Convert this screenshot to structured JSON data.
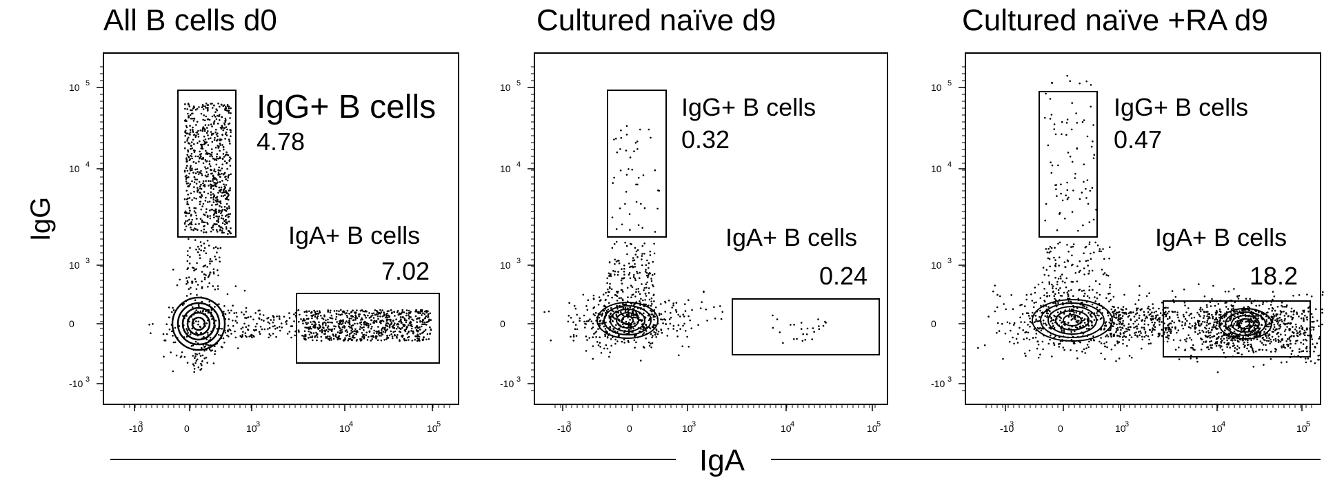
{
  "axis_title_x": "IgA",
  "axis_title_y": "IgG",
  "chart_data": [
    {
      "type": "scatter",
      "subtype": "flow-cytometry contour plot with outliers",
      "title": "All B cells d0",
      "xlabel": "IgA",
      "ylabel": "IgG",
      "xscale": "biexponential",
      "yscale": "biexponential",
      "x_ticks": [
        "-10^3",
        "0",
        "10^3",
        "10^4",
        "10^5"
      ],
      "y_ticks": [
        "10^5",
        "10^4",
        "10^3",
        "0",
        "-10^3"
      ],
      "gates": [
        {
          "name": "IgG+ B cells",
          "value": 4.78,
          "display": "4.78"
        },
        {
          "name": "IgA+ B cells",
          "value": 7.02,
          "display": "7.02"
        }
      ],
      "populations": [
        {
          "name": "double-negative",
          "x": 0,
          "y": 0,
          "contour": "strong"
        },
        {
          "name": "IgG+",
          "x_range": [
            0,
            800
          ],
          "y_range": [
            2000,
            80000
          ]
        },
        {
          "name": "IgA+",
          "x_range": [
            3000,
            100000
          ],
          "y_range": [
            -300,
            300
          ]
        }
      ]
    },
    {
      "type": "scatter",
      "subtype": "flow-cytometry contour plot with outliers",
      "title": "Cultured naïve d9",
      "xlabel": "IgA",
      "ylabel": "IgG",
      "xscale": "biexponential",
      "yscale": "biexponential",
      "x_ticks": [
        "-10^3",
        "0",
        "10^3",
        "10^4",
        "10^5"
      ],
      "y_ticks": [
        "10^5",
        "10^4",
        "10^3",
        "0",
        "-10^3"
      ],
      "gates": [
        {
          "name": "IgG+ B cells",
          "value": 0.32,
          "display": "0.32"
        },
        {
          "name": "IgA+ B cells",
          "value": 0.24,
          "display": "0.24"
        }
      ],
      "populations": [
        {
          "name": "double-negative",
          "x": 0,
          "y": 0,
          "contour": "dense"
        },
        {
          "name": "IgG+",
          "x_range": [
            0,
            800
          ],
          "y_range": [
            2000,
            30000
          ]
        },
        {
          "name": "IgA+",
          "x_range": [
            5000,
            50000
          ],
          "y_range": [
            -300,
            300
          ]
        }
      ]
    },
    {
      "type": "scatter",
      "subtype": "flow-cytometry contour plot with outliers",
      "title": "Cultured naïve +RA d9",
      "xlabel": "IgA",
      "ylabel": "IgG",
      "xscale": "biexponential",
      "yscale": "biexponential",
      "x_ticks": [
        "-10^3",
        "0",
        "10^3",
        "10^4",
        "10^5"
      ],
      "y_ticks": [
        "10^5",
        "10^4",
        "10^3",
        "0",
        "-10^3"
      ],
      "gates": [
        {
          "name": "IgG+ B cells",
          "value": 0.47,
          "display": "0.47"
        },
        {
          "name": "IgA+ B cells",
          "value": 18.2,
          "display": "18.2"
        }
      ],
      "populations": [
        {
          "name": "double-negative",
          "x": 0,
          "y": 0,
          "contour": "strong"
        },
        {
          "name": "IgG+",
          "x_range": [
            0,
            800
          ],
          "y_range": [
            2000,
            100000
          ]
        },
        {
          "name": "IgA+",
          "x_range": [
            5000,
            100000
          ],
          "y_range": [
            -300,
            300
          ],
          "contour": "strong"
        }
      ]
    }
  ]
}
